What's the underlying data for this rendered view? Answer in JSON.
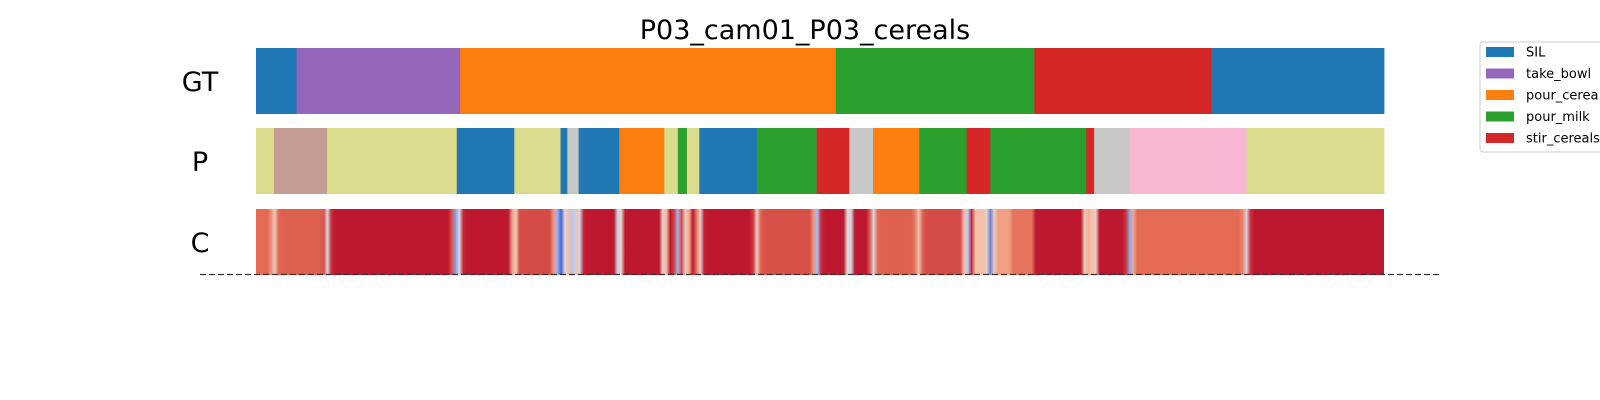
{
  "chart_data": {
    "type": "segmentation",
    "title": "P03_cam01_P03_cereals",
    "x_domain": [
      0,
      1
    ],
    "rows": [
      {
        "label": "GT",
        "segments": [
          {
            "start": 0.0,
            "end": 0.036,
            "label": "SIL"
          },
          {
            "start": 0.036,
            "end": 0.181,
            "label": "take_bowl"
          },
          {
            "start": 0.181,
            "end": 0.514,
            "label": "pour_cereals"
          },
          {
            "start": 0.514,
            "end": 0.69,
            "label": "pour_milk"
          },
          {
            "start": 0.69,
            "end": 0.847,
            "label": "stir_cereals"
          },
          {
            "start": 0.847,
            "end": 1.0,
            "label": "SIL"
          }
        ]
      },
      {
        "label": "P",
        "segments": [
          {
            "start": 0.0,
            "end": 0.016,
            "label": "olive"
          },
          {
            "start": 0.016,
            "end": 0.063,
            "label": "brown"
          },
          {
            "start": 0.063,
            "end": 0.178,
            "label": "olive"
          },
          {
            "start": 0.178,
            "end": 0.229,
            "label": "SIL"
          },
          {
            "start": 0.229,
            "end": 0.27,
            "label": "olive"
          },
          {
            "start": 0.27,
            "end": 0.276,
            "label": "SIL"
          },
          {
            "start": 0.276,
            "end": 0.286,
            "label": "gray"
          },
          {
            "start": 0.286,
            "end": 0.322,
            "label": "SIL"
          },
          {
            "start": 0.322,
            "end": 0.362,
            "label": "pour_cereals"
          },
          {
            "start": 0.362,
            "end": 0.374,
            "label": "olive"
          },
          {
            "start": 0.374,
            "end": 0.382,
            "label": "pour_milk"
          },
          {
            "start": 0.382,
            "end": 0.393,
            "label": "olive"
          },
          {
            "start": 0.393,
            "end": 0.444,
            "label": "SIL"
          },
          {
            "start": 0.444,
            "end": 0.497,
            "label": "pour_milk"
          },
          {
            "start": 0.497,
            "end": 0.526,
            "label": "stir_cereals"
          },
          {
            "start": 0.526,
            "end": 0.547,
            "label": "gray"
          },
          {
            "start": 0.547,
            "end": 0.588,
            "label": "pour_cereals"
          },
          {
            "start": 0.588,
            "end": 0.63,
            "label": "pour_milk"
          },
          {
            "start": 0.63,
            "end": 0.651,
            "label": "stir_cereals"
          },
          {
            "start": 0.651,
            "end": 0.736,
            "label": "pour_milk"
          },
          {
            "start": 0.736,
            "end": 0.743,
            "label": "stir_cereals"
          },
          {
            "start": 0.743,
            "end": 0.775,
            "label": "gray"
          },
          {
            "start": 0.775,
            "end": 0.878,
            "label": "pink"
          },
          {
            "start": 0.878,
            "end": 1.0,
            "label": "olive"
          }
        ]
      },
      {
        "label": "C",
        "confidence": {
          "colors": {
            "high": "#b40426",
            "low": "#3b4cc0"
          },
          "base": 0.96,
          "dips": [
            {
              "x": 0.016,
              "w": 0.003,
              "v": 0.55
            },
            {
              "x": 0.063,
              "w": 0.003,
              "v": 0.45
            },
            {
              "x": 0.178,
              "w": 0.004,
              "v": 0.15
            },
            {
              "x": 0.229,
              "w": 0.003,
              "v": 0.45
            },
            {
              "x": 0.27,
              "w": 0.006,
              "v": 0.05
            },
            {
              "x": 0.28,
              "w": 0.004,
              "v": 0.35
            },
            {
              "x": 0.286,
              "w": 0.003,
              "v": 0.3
            },
            {
              "x": 0.322,
              "w": 0.003,
              "v": 0.2
            },
            {
              "x": 0.362,
              "w": 0.003,
              "v": 0.35
            },
            {
              "x": 0.374,
              "w": 0.003,
              "v": 0.3
            },
            {
              "x": 0.382,
              "w": 0.003,
              "v": 0.4
            },
            {
              "x": 0.393,
              "w": 0.003,
              "v": 0.45
            },
            {
              "x": 0.444,
              "w": 0.003,
              "v": 0.55
            },
            {
              "x": 0.497,
              "w": 0.003,
              "v": 0.3
            },
            {
              "x": 0.526,
              "w": 0.003,
              "v": 0.2
            },
            {
              "x": 0.547,
              "w": 0.003,
              "v": 0.45
            },
            {
              "x": 0.588,
              "w": 0.004,
              "v": 0.6
            },
            {
              "x": 0.63,
              "w": 0.003,
              "v": 0.25
            },
            {
              "x": 0.651,
              "w": 0.003,
              "v": 0.15
            },
            {
              "x": 0.736,
              "w": 0.003,
              "v": 0.4
            },
            {
              "x": 0.743,
              "w": 0.003,
              "v": 0.35
            },
            {
              "x": 0.775,
              "w": 0.003,
              "v": 0.25
            },
            {
              "x": 0.878,
              "w": 0.003,
              "v": 0.45
            }
          ],
          "regions": [
            {
              "start": 0.0,
              "end": 0.016,
              "v": 0.8
            },
            {
              "start": 0.02,
              "end": 0.06,
              "v": 0.82
            },
            {
              "start": 0.23,
              "end": 0.268,
              "v": 0.86
            },
            {
              "start": 0.444,
              "end": 0.495,
              "v": 0.85
            },
            {
              "start": 0.547,
              "end": 0.586,
              "v": 0.82
            },
            {
              "start": 0.591,
              "end": 0.628,
              "v": 0.86
            },
            {
              "start": 0.636,
              "end": 0.655,
              "v": 0.62
            },
            {
              "start": 0.655,
              "end": 0.67,
              "v": 0.7
            },
            {
              "start": 0.67,
              "end": 0.69,
              "v": 0.78
            },
            {
              "start": 0.776,
              "end": 0.876,
              "v": 0.8
            }
          ]
        }
      }
    ],
    "legend": {
      "placement": "top-right",
      "entries": [
        "SIL",
        "take_bowl",
        "pour_cereals",
        "pour_milk",
        "stir_cereals"
      ],
      "shown_labels": [
        "SIL",
        "take_bowl",
        "pour_cerea",
        "pour_milk",
        "stir_cereals"
      ]
    },
    "colors": {
      "SIL": "#1f77b4",
      "take_bowl": "#9467bd",
      "pour_cereals": "#ff7f0e",
      "pour_milk": "#2ca02c",
      "stir_cereals": "#d62728",
      "olive": "#dbdb8d",
      "brown": "#c49c94",
      "gray": "#c7c7c7",
      "pink": "#f7b6d2"
    },
    "baseline": "dashed"
  }
}
